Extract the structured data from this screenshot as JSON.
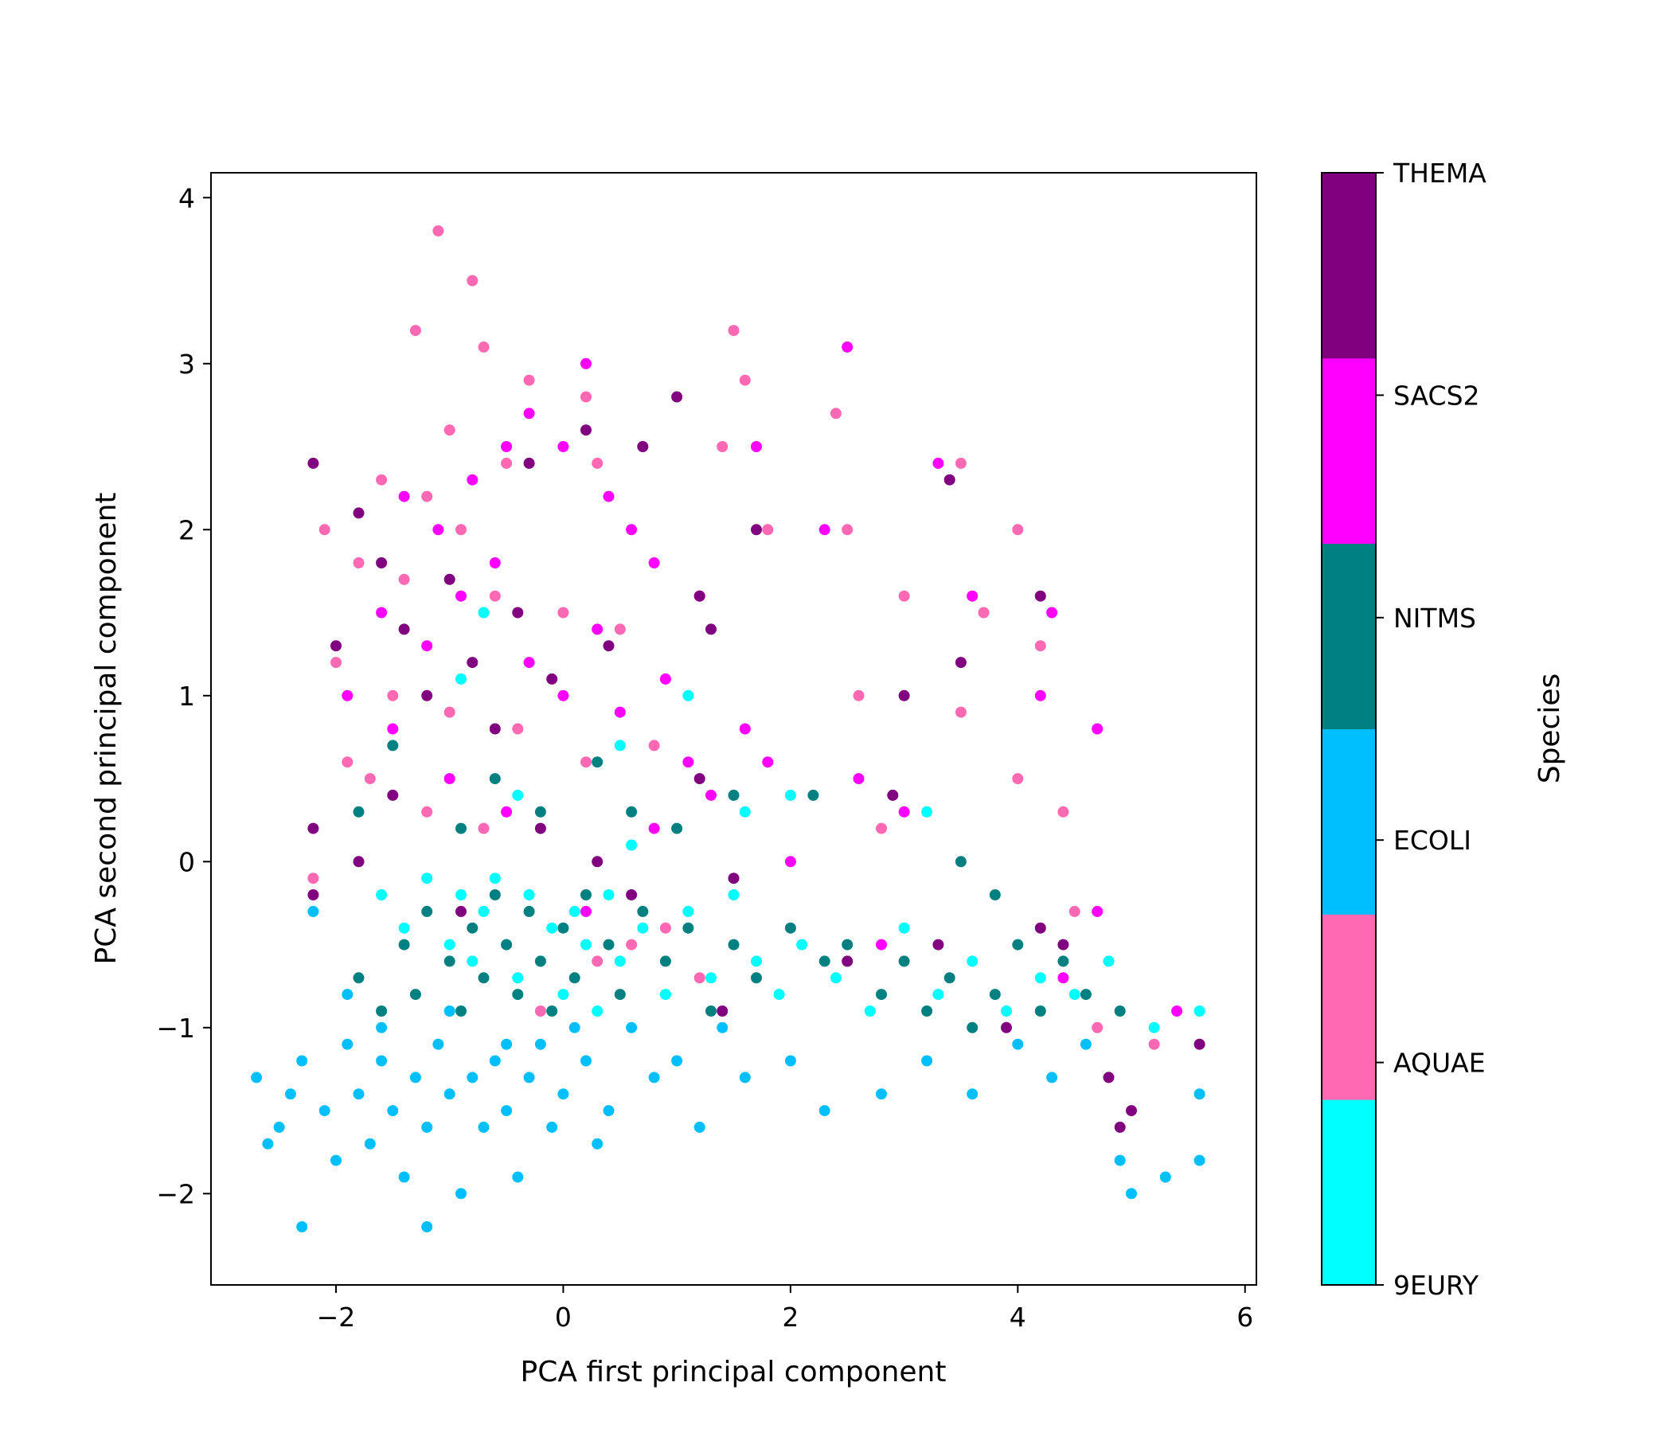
{
  "chart_data": {
    "type": "scatter",
    "title": "",
    "xlabel": "PCA first principal component",
    "ylabel": "PCA second principal component",
    "xlim": [
      -3.1,
      6.1
    ],
    "ylim": [
      -2.55,
      4.15
    ],
    "x_ticks": [
      -2,
      0,
      2,
      4,
      6
    ],
    "y_ticks": [
      -2,
      -1,
      0,
      1,
      2,
      3,
      4
    ],
    "x_tick_labels": [
      "−2",
      "0",
      "2",
      "4",
      "6"
    ],
    "y_tick_labels": [
      "−2",
      "−1",
      "0",
      "1",
      "2",
      "3",
      "4"
    ],
    "grid": false,
    "colorbar": {
      "label": "Species",
      "categories": [
        "9EURY",
        "AQUAE",
        "ECOLI",
        "NITMS",
        "SACS2",
        "THEMA"
      ],
      "colors": [
        "#00ffff",
        "#ff69b4",
        "#00bfff",
        "#008080",
        "#ff00ff",
        "#800080"
      ]
    },
    "series": [
      {
        "color": "#00ffff",
        "points": [
          [
            -2.2,
            -0.3
          ],
          [
            -1.6,
            -0.2
          ],
          [
            -1.4,
            -0.4
          ],
          [
            -1.2,
            -0.1
          ],
          [
            -1.0,
            -0.5
          ],
          [
            -0.9,
            -0.2
          ],
          [
            -0.8,
            -0.6
          ],
          [
            -0.7,
            -0.3
          ],
          [
            -0.6,
            -0.1
          ],
          [
            -0.5,
            -0.5
          ],
          [
            -0.4,
            -0.7
          ],
          [
            -0.3,
            -0.2
          ],
          [
            -0.2,
            -0.6
          ],
          [
            -0.1,
            -0.4
          ],
          [
            0.0,
            -0.8
          ],
          [
            0.1,
            -0.3
          ],
          [
            0.2,
            -0.5
          ],
          [
            0.3,
            -0.9
          ],
          [
            0.4,
            -0.2
          ],
          [
            0.5,
            -0.6
          ],
          [
            0.6,
            0.1
          ],
          [
            0.7,
            -0.4
          ],
          [
            0.9,
            -0.8
          ],
          [
            1.1,
            -0.3
          ],
          [
            1.3,
            -0.7
          ],
          [
            1.5,
            -0.2
          ],
          [
            1.7,
            -0.6
          ],
          [
            1.9,
            -0.8
          ],
          [
            2.1,
            -0.5
          ],
          [
            2.4,
            -0.7
          ],
          [
            2.7,
            -0.9
          ],
          [
            3.0,
            -0.4
          ],
          [
            3.3,
            -0.8
          ],
          [
            3.6,
            -0.6
          ],
          [
            3.9,
            -0.9
          ],
          [
            4.2,
            -0.7
          ],
          [
            4.5,
            -0.8
          ],
          [
            4.8,
            -0.6
          ],
          [
            5.2,
            -1.0
          ],
          [
            5.6,
            -0.9
          ],
          [
            -0.7,
            1.5
          ],
          [
            -0.9,
            1.1
          ],
          [
            1.1,
            1.0
          ],
          [
            0.5,
            0.7
          ],
          [
            -0.4,
            0.4
          ],
          [
            1.6,
            0.3
          ],
          [
            2.0,
            0.4
          ],
          [
            3.2,
            0.3
          ]
        ]
      },
      {
        "color": "#ff69b4",
        "points": [
          [
            -1.1,
            3.8
          ],
          [
            -0.8,
            3.5
          ],
          [
            -1.3,
            3.2
          ],
          [
            -0.7,
            3.1
          ],
          [
            -0.3,
            2.9
          ],
          [
            0.2,
            2.8
          ],
          [
            -1.0,
            2.6
          ],
          [
            -0.5,
            2.4
          ],
          [
            0.3,
            2.4
          ],
          [
            -1.6,
            2.3
          ],
          [
            -1.2,
            2.2
          ],
          [
            -0.9,
            2.0
          ],
          [
            -2.1,
            2.0
          ],
          [
            -1.8,
            1.8
          ],
          [
            -1.4,
            1.7
          ],
          [
            -0.6,
            1.6
          ],
          [
            0.0,
            1.5
          ],
          [
            0.5,
            1.4
          ],
          [
            -2.0,
            1.2
          ],
          [
            -1.5,
            1.0
          ],
          [
            -1.0,
            0.9
          ],
          [
            -0.4,
            0.8
          ],
          [
            0.2,
            0.6
          ],
          [
            0.8,
            0.7
          ],
          [
            -1.7,
            0.5
          ],
          [
            -1.2,
            0.3
          ],
          [
            -0.7,
            0.2
          ],
          [
            1.5,
            3.2
          ],
          [
            1.6,
            2.9
          ],
          [
            1.4,
            2.5
          ],
          [
            1.8,
            2.0
          ],
          [
            2.4,
            2.7
          ],
          [
            2.5,
            2.0
          ],
          [
            3.5,
            2.4
          ],
          [
            3.7,
            1.5
          ],
          [
            4.0,
            2.0
          ],
          [
            4.2,
            1.3
          ],
          [
            3.0,
            1.6
          ],
          [
            2.6,
            1.0
          ],
          [
            4.4,
            0.3
          ],
          [
            4.5,
            -0.3
          ],
          [
            4.0,
            0.5
          ],
          [
            3.5,
            0.9
          ],
          [
            2.8,
            0.2
          ],
          [
            5.2,
            -1.1
          ],
          [
            4.7,
            -1.0
          ],
          [
            -2.2,
            -0.1
          ],
          [
            -1.9,
            0.6
          ],
          [
            0.9,
            -0.4
          ],
          [
            1.2,
            -0.7
          ],
          [
            -0.2,
            -0.9
          ],
          [
            0.3,
            -0.6
          ],
          [
            0.6,
            -0.5
          ]
        ]
      },
      {
        "color": "#00bfff",
        "points": [
          [
            -2.7,
            -1.3
          ],
          [
            -2.5,
            -1.6
          ],
          [
            -2.3,
            -1.2
          ],
          [
            -2.3,
            -2.2
          ],
          [
            -2.1,
            -1.5
          ],
          [
            -2.0,
            -1.8
          ],
          [
            -1.9,
            -1.1
          ],
          [
            -1.8,
            -1.4
          ],
          [
            -1.7,
            -1.7
          ],
          [
            -1.6,
            -1.2
          ],
          [
            -1.5,
            -1.5
          ],
          [
            -1.4,
            -1.9
          ],
          [
            -1.3,
            -1.3
          ],
          [
            -1.2,
            -2.2
          ],
          [
            -1.2,
            -1.6
          ],
          [
            -1.1,
            -1.1
          ],
          [
            -1.0,
            -1.4
          ],
          [
            -0.9,
            -2.0
          ],
          [
            -0.8,
            -1.3
          ],
          [
            -0.7,
            -1.6
          ],
          [
            -0.6,
            -1.2
          ],
          [
            -0.5,
            -1.5
          ],
          [
            -0.4,
            -1.9
          ],
          [
            -0.3,
            -1.3
          ],
          [
            -0.2,
            -1.1
          ],
          [
            -0.1,
            -1.6
          ],
          [
            0.0,
            -1.4
          ],
          [
            0.2,
            -1.2
          ],
          [
            0.3,
            -1.7
          ],
          [
            0.4,
            -1.5
          ],
          [
            0.6,
            -1.0
          ],
          [
            0.8,
            -1.3
          ],
          [
            1.0,
            -1.2
          ],
          [
            1.2,
            -1.6
          ],
          [
            1.4,
            -1.0
          ],
          [
            1.6,
            -1.3
          ],
          [
            2.0,
            -1.2
          ],
          [
            2.3,
            -1.5
          ],
          [
            2.8,
            -1.4
          ],
          [
            3.2,
            -1.2
          ],
          [
            3.6,
            -1.4
          ],
          [
            4.0,
            -1.1
          ],
          [
            4.3,
            -1.3
          ],
          [
            4.6,
            -1.1
          ],
          [
            4.9,
            -1.8
          ],
          [
            5.0,
            -2.0
          ],
          [
            5.3,
            -1.9
          ],
          [
            5.6,
            -1.8
          ],
          [
            5.6,
            -1.4
          ],
          [
            -2.4,
            -1.4
          ],
          [
            -2.6,
            -1.7
          ],
          [
            -1.9,
            -0.8
          ],
          [
            -1.6,
            -1.0
          ],
          [
            -1.0,
            -0.9
          ],
          [
            -0.5,
            -1.1
          ],
          [
            0.1,
            -1.0
          ],
          [
            -2.2,
            -0.3
          ]
        ]
      },
      {
        "color": "#008080",
        "points": [
          [
            -1.8,
            -0.7
          ],
          [
            -1.6,
            -0.9
          ],
          [
            -1.4,
            -0.5
          ],
          [
            -1.3,
            -0.8
          ],
          [
            -1.2,
            -0.3
          ],
          [
            -1.0,
            -0.6
          ],
          [
            -0.9,
            -0.9
          ],
          [
            -0.8,
            -0.4
          ],
          [
            -0.7,
            -0.7
          ],
          [
            -0.6,
            -0.2
          ],
          [
            -0.5,
            -0.5
          ],
          [
            -0.4,
            -0.8
          ],
          [
            -0.3,
            -0.3
          ],
          [
            -0.2,
            -0.6
          ],
          [
            -0.1,
            -0.9
          ],
          [
            0.0,
            -0.4
          ],
          [
            0.1,
            -0.7
          ],
          [
            0.2,
            -0.2
          ],
          [
            0.4,
            -0.5
          ],
          [
            0.5,
            -0.8
          ],
          [
            0.7,
            -0.3
          ],
          [
            0.9,
            -0.6
          ],
          [
            1.1,
            -0.4
          ],
          [
            1.3,
            -0.9
          ],
          [
            1.5,
            -0.5
          ],
          [
            1.7,
            -0.7
          ],
          [
            2.0,
            -0.4
          ],
          [
            2.3,
            -0.6
          ],
          [
            2.5,
            -0.5
          ],
          [
            2.8,
            -0.8
          ],
          [
            3.0,
            -0.6
          ],
          [
            3.2,
            -0.9
          ],
          [
            3.4,
            -0.7
          ],
          [
            3.6,
            -1.0
          ],
          [
            3.8,
            -0.8
          ],
          [
            4.0,
            -0.5
          ],
          [
            4.2,
            -0.9
          ],
          [
            4.4,
            -0.6
          ],
          [
            4.6,
            -0.8
          ],
          [
            4.9,
            -0.9
          ],
          [
            -0.9,
            0.2
          ],
          [
            -0.6,
            0.5
          ],
          [
            -0.2,
            0.3
          ],
          [
            0.3,
            0.6
          ],
          [
            0.6,
            0.3
          ],
          [
            1.0,
            0.2
          ],
          [
            1.5,
            0.4
          ],
          [
            2.2,
            0.4
          ],
          [
            3.5,
            0.0
          ],
          [
            3.8,
            -0.2
          ],
          [
            -1.5,
            0.7
          ],
          [
            -1.8,
            0.3
          ]
        ]
      },
      {
        "color": "#ff00ff",
        "points": [
          [
            -1.4,
            2.2
          ],
          [
            -1.1,
            2.0
          ],
          [
            -0.8,
            2.3
          ],
          [
            -0.5,
            2.5
          ],
          [
            -0.3,
            2.7
          ],
          [
            0.0,
            2.5
          ],
          [
            0.2,
            3.0
          ],
          [
            0.4,
            2.2
          ],
          [
            0.6,
            2.0
          ],
          [
            0.8,
            1.8
          ],
          [
            -1.6,
            1.5
          ],
          [
            -1.2,
            1.3
          ],
          [
            -0.9,
            1.6
          ],
          [
            -0.6,
            1.8
          ],
          [
            -0.3,
            1.2
          ],
          [
            0.0,
            1.0
          ],
          [
            0.3,
            1.4
          ],
          [
            0.5,
            0.9
          ],
          [
            0.9,
            1.1
          ],
          [
            1.1,
            0.6
          ],
          [
            1.3,
            0.4
          ],
          [
            1.6,
            0.8
          ],
          [
            1.7,
            2.5
          ],
          [
            2.3,
            2.0
          ],
          [
            2.5,
            3.1
          ],
          [
            3.3,
            2.4
          ],
          [
            3.6,
            1.6
          ],
          [
            4.3,
            1.5
          ],
          [
            4.2,
            1.0
          ],
          [
            4.7,
            0.8
          ],
          [
            3.0,
            0.3
          ],
          [
            2.6,
            0.5
          ],
          [
            1.8,
            0.6
          ],
          [
            -1.9,
            1.0
          ],
          [
            -1.5,
            0.8
          ],
          [
            -1.0,
            0.5
          ],
          [
            -0.5,
            0.3
          ],
          [
            0.2,
            -0.3
          ],
          [
            0.8,
            0.2
          ],
          [
            2.0,
            0.0
          ],
          [
            2.8,
            -0.5
          ],
          [
            4.4,
            -0.7
          ],
          [
            5.4,
            -0.9
          ],
          [
            4.7,
            -0.3
          ],
          [
            1.2,
            1.6
          ]
        ]
      },
      {
        "color": "#800080",
        "points": [
          [
            -2.2,
            2.4
          ],
          [
            -2.0,
            1.3
          ],
          [
            -1.8,
            2.1
          ],
          [
            -1.6,
            1.8
          ],
          [
            -1.4,
            1.4
          ],
          [
            -1.2,
            1.0
          ],
          [
            -1.0,
            1.7
          ],
          [
            -0.8,
            1.2
          ],
          [
            -0.6,
            0.8
          ],
          [
            -0.4,
            1.5
          ],
          [
            -0.3,
            2.4
          ],
          [
            -0.1,
            1.1
          ],
          [
            0.2,
            2.6
          ],
          [
            0.4,
            1.3
          ],
          [
            0.7,
            2.5
          ],
          [
            1.0,
            2.8
          ],
          [
            1.2,
            1.6
          ],
          [
            1.3,
            1.4
          ],
          [
            1.7,
            2.0
          ],
          [
            3.0,
            1.0
          ],
          [
            3.4,
            2.3
          ],
          [
            3.5,
            1.2
          ],
          [
            4.2,
            1.6
          ],
          [
            2.9,
            0.4
          ],
          [
            -2.2,
            0.2
          ],
          [
            -2.2,
            -0.2
          ],
          [
            -1.8,
            0.0
          ],
          [
            -1.5,
            0.4
          ],
          [
            -0.9,
            -0.3
          ],
          [
            -0.2,
            0.2
          ],
          [
            0.3,
            0.0
          ],
          [
            1.2,
            0.5
          ],
          [
            1.5,
            -0.1
          ],
          [
            2.5,
            -0.6
          ],
          [
            3.3,
            -0.5
          ],
          [
            3.9,
            -1.0
          ],
          [
            4.2,
            -0.4
          ],
          [
            4.4,
            -0.5
          ],
          [
            4.8,
            -1.3
          ],
          [
            4.9,
            -1.6
          ],
          [
            5.0,
            -1.5
          ],
          [
            5.6,
            -1.1
          ],
          [
            1.4,
            -0.9
          ],
          [
            0.6,
            -0.2
          ]
        ]
      }
    ]
  }
}
